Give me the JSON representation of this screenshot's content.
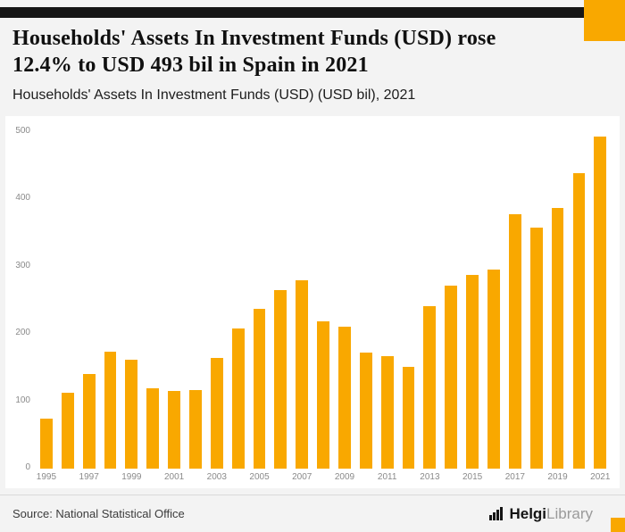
{
  "header": {
    "title_lines": [
      "Households' Assets In Investment Funds (USD) rose",
      "12.4% to USD 493 bil in Spain in 2021"
    ],
    "subtitle": "Households' Assets In Investment Funds (USD) (USD bil), 2021"
  },
  "footer": {
    "source": "Source: National Statistical Office",
    "brand_bold": "Helgi",
    "brand_light": "Library"
  },
  "colors": {
    "accent": "#F9A800",
    "topbar": "#161616",
    "axis_text": "#8a8a8a",
    "plot_background": "#ffffff",
    "page_background": "#f3f3f3"
  },
  "chart_data": {
    "type": "bar",
    "title": "Households' Assets In Investment Funds (USD) (USD bil), 2021",
    "xlabel": "",
    "ylabel": "USD bil",
    "ylim": [
      0,
      510
    ],
    "yticks": [
      0,
      100,
      200,
      300,
      400,
      500
    ],
    "grid": false,
    "legend": false,
    "categories": [
      "1995",
      "1996",
      "1997",
      "1998",
      "1999",
      "2000",
      "2001",
      "2002",
      "2003",
      "2004",
      "2005",
      "2006",
      "2007",
      "2008",
      "2009",
      "2010",
      "2011",
      "2012",
      "2013",
      "2014",
      "2015",
      "2016",
      "2017",
      "2018",
      "2019",
      "2020",
      "2021"
    ],
    "values": [
      74,
      112,
      140,
      174,
      162,
      119,
      115,
      117,
      164,
      208,
      237,
      265,
      279,
      219,
      211,
      172,
      167,
      151,
      241,
      272,
      288,
      296,
      378,
      358,
      387,
      438,
      493
    ]
  }
}
